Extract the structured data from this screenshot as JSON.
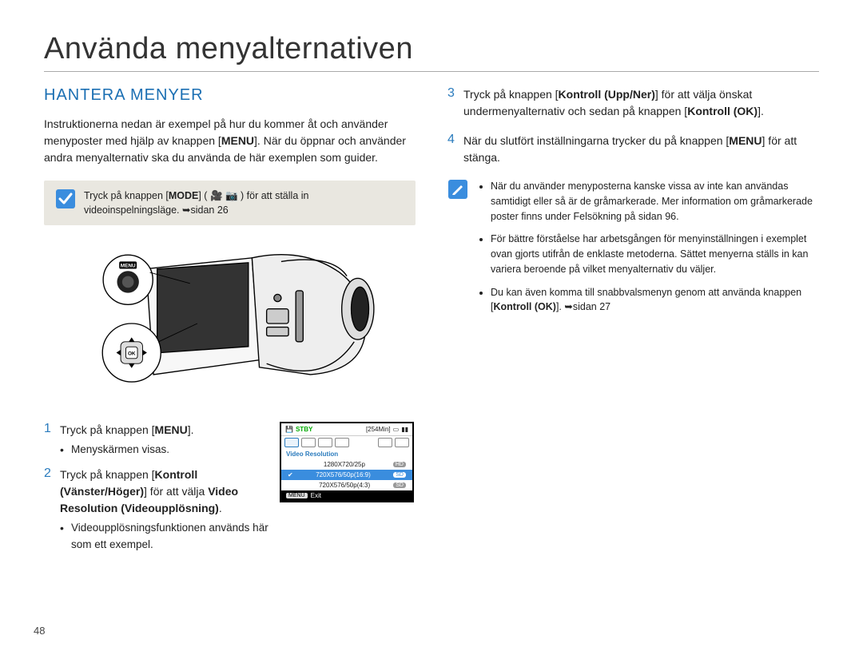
{
  "page": {
    "main_title": "Använda menyalternativen",
    "page_number": "48"
  },
  "left": {
    "section_title": "HANTERA MENYER",
    "intro_html": "Instruktionerna nedan är exempel på hur du kommer åt och använder menyposter med hjälp av knappen [<b>MENU</b>]. När du öppnar och använder andra menyalternativ ska du använda de här exemplen som guider.",
    "tip_html": "Tryck på knappen [<b>MODE</b>] ( <span class='glyph'>🎥 📷</span> ) för att ställa in videoinspelningsläge. ➥sidan 26",
    "steps": [
      {
        "num": "1",
        "body_html": "Tryck på knappen [<b>MENU</b>].",
        "sub": "Menyskärmen visas."
      },
      {
        "num": "2",
        "body_html": "Tryck på knappen [<b>Kontroll (Vänster/Höger)</b>] för att välja <b>Video Resolution (Videoupplösning)</b>.",
        "sub": "Videoupplösningsfunktionen används här som ett exempel."
      }
    ]
  },
  "right": {
    "steps": [
      {
        "num": "3",
        "body_html": "Tryck på knappen [<b>Kontroll (Upp/Ner)</b>] för att välja önskat undermenyalternativ och sedan på knappen [<b>Kontroll (OK)</b>]."
      },
      {
        "num": "4",
        "body_html": "När du slutfört inställningarna trycker du på knappen [<b>MENU</b>] för att stänga."
      }
    ],
    "notes": [
      "När du använder menyposterna kanske vissa av inte kan användas samtidigt eller så är de gråmarkerade. Mer information om gråmarkerade poster finns under Felsökning på sidan 96.",
      "För bättre förståelse har arbetsgången för menyinställningen i exemplet ovan gjorts utifrån de enklaste metoderna. Sättet menyerna ställs in kan variera beroende på vilket menyalternativ du väljer.",
      "Du kan även komma till snabbvalsmenyn genom att använda knappen [<b>Kontroll (OK)</b>]. ➥sidan 27"
    ]
  },
  "mini": {
    "stby": "STBY",
    "time": "[254Min]",
    "label": "Video Resolution",
    "rows": [
      {
        "text": "1280X720/25p",
        "badge": "HD",
        "selected": false
      },
      {
        "text": "720X576/50p(16:9)",
        "badge": "SD",
        "selected": true
      },
      {
        "text": "720X576/50p(4:3)",
        "badge": "SD",
        "selected": false
      }
    ],
    "exit_btn": "MENU",
    "exit_label": "Exit"
  },
  "colors": {
    "accent_blue": "#2a7bbd",
    "section_blue": "#1b6fb3",
    "tip_bg": "#e9e7e0",
    "stby_green": "#00aa00",
    "sel_blue": "#3a8dde"
  },
  "illustration": {
    "menu_label": "MENU",
    "ok_label": "OK"
  }
}
